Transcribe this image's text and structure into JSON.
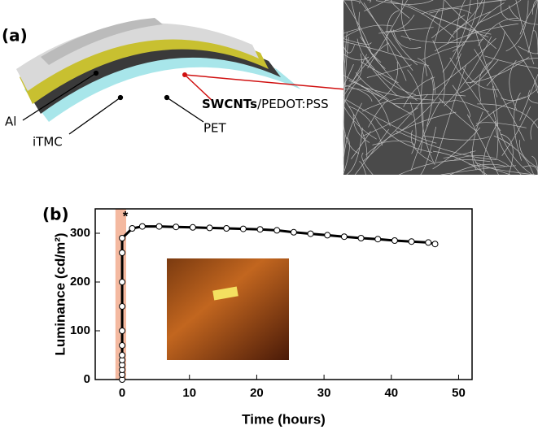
{
  "panel_a": {
    "label": "(a)",
    "layers": [
      "Al",
      "iTMC",
      "PET"
    ],
    "electrode": {
      "bold": "SWCNTs",
      "rest": "/PEDOT:PSS"
    }
  },
  "chart_data": {
    "type": "line",
    "label": "(b)",
    "x_label": "Time (hours)",
    "y_label": "Luminance (cd/m²)",
    "annotation": "*",
    "x": [
      0,
      0,
      0,
      0,
      0,
      0,
      0,
      0,
      0,
      0,
      0,
      0,
      1.5,
      3,
      5.5,
      8,
      10.5,
      13,
      15.5,
      18,
      20.5,
      23,
      25.5,
      28,
      30.5,
      33,
      35.5,
      38,
      40.5,
      43,
      45.5,
      46.5
    ],
    "series": [
      {
        "color": "#000000",
        "values": [
          0,
          10,
          20,
          30,
          40,
          50,
          70,
          100,
          150,
          200,
          260,
          290,
          310,
          314,
          314,
          313,
          312,
          311,
          310,
          309,
          308,
          306,
          302,
          299,
          296,
          293,
          290,
          288,
          285,
          283,
          281,
          278
        ]
      }
    ],
    "shaded_range": [
      -1,
      0.6
    ],
    "shade_color": "#f4b9a0",
    "xlim": [
      -4,
      52
    ],
    "ylim": [
      0,
      350
    ],
    "xticks": [
      0,
      10,
      20,
      30,
      40,
      50
    ],
    "yticks": [
      0,
      100,
      200,
      300
    ]
  }
}
